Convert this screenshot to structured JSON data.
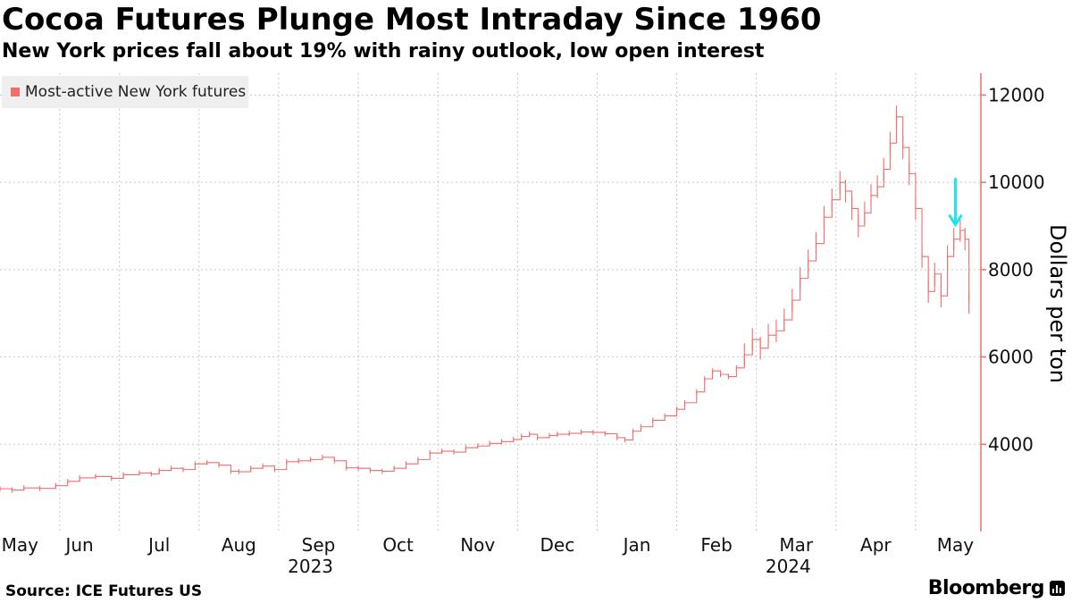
{
  "header": {
    "title": "Cocoa Futures Plunge Most Intraday Since 1960",
    "subtitle": "New York prices fall about 19% with rainy outlook, low open interest"
  },
  "footer": {
    "source": "Source: ICE Futures US",
    "brand": "Bloomberg"
  },
  "colors": {
    "series": "#f26d6d",
    "axis": "#f26d6d",
    "arrow": "#1ee4f0",
    "grid": "#c8c8c8"
  },
  "chart_data": {
    "type": "line",
    "title": "Cocoa Futures Plunge Most Intraday Since 1960",
    "subtitle": "New York prices fall about 19% with rainy outlook, low open interest",
    "ylabel": "Dollars per ton",
    "ylim": [
      2000,
      12500
    ],
    "yticks": [
      4000,
      6000,
      8000,
      10000,
      12000
    ],
    "ytick_labels": [
      "4000",
      "6000",
      "8000",
      "10000",
      "12000"
    ],
    "x_range": [
      0,
      12.32
    ],
    "month_ticks": [
      {
        "label": "May",
        "x": 0.25
      },
      {
        "label": "Jun",
        "x": 1
      },
      {
        "label": "Jul",
        "x": 2
      },
      {
        "label": "Aug",
        "x": 3
      },
      {
        "label": "Sep",
        "x": 4
      },
      {
        "label": "Oct",
        "x": 5
      },
      {
        "label": "Nov",
        "x": 6
      },
      {
        "label": "Dec",
        "x": 7
      },
      {
        "label": "Jan",
        "x": 8
      },
      {
        "label": "Feb",
        "x": 9
      },
      {
        "label": "Mar",
        "x": 10
      },
      {
        "label": "Apr",
        "x": 11
      },
      {
        "label": "May",
        "x": 12
      }
    ],
    "year_labels": [
      {
        "label": "2023",
        "x": 3.9
      },
      {
        "label": "2024",
        "x": 9.9
      }
    ],
    "legend": [
      "Most-active New York futures"
    ],
    "annotation": {
      "type": "down-arrow",
      "x": 12.0,
      "y_from": 10100,
      "y_to": 9050
    },
    "series": [
      {
        "name": "Most-active New York futures",
        "points": [
          [
            0.0,
            2980
          ],
          [
            0.15,
            2950
          ],
          [
            0.3,
            3000
          ],
          [
            0.5,
            2990
          ],
          [
            0.7,
            3050
          ],
          [
            0.85,
            3150
          ],
          [
            1.0,
            3230
          ],
          [
            1.2,
            3260
          ],
          [
            1.4,
            3220
          ],
          [
            1.55,
            3300
          ],
          [
            1.75,
            3340
          ],
          [
            1.9,
            3320
          ],
          [
            2.0,
            3400
          ],
          [
            2.15,
            3450
          ],
          [
            2.3,
            3420
          ],
          [
            2.45,
            3550
          ],
          [
            2.6,
            3580
          ],
          [
            2.75,
            3520
          ],
          [
            2.9,
            3380
          ],
          [
            3.0,
            3370
          ],
          [
            3.15,
            3450
          ],
          [
            3.3,
            3500
          ],
          [
            3.45,
            3420
          ],
          [
            3.6,
            3600
          ],
          [
            3.75,
            3620
          ],
          [
            3.9,
            3650
          ],
          [
            4.05,
            3700
          ],
          [
            4.2,
            3620
          ],
          [
            4.35,
            3460
          ],
          [
            4.5,
            3450
          ],
          [
            4.65,
            3400
          ],
          [
            4.8,
            3380
          ],
          [
            4.95,
            3450
          ],
          [
            5.1,
            3550
          ],
          [
            5.25,
            3650
          ],
          [
            5.4,
            3800
          ],
          [
            5.55,
            3840
          ],
          [
            5.7,
            3820
          ],
          [
            5.85,
            3920
          ],
          [
            6.0,
            3960
          ],
          [
            6.15,
            4020
          ],
          [
            6.3,
            4060
          ],
          [
            6.45,
            4110
          ],
          [
            6.55,
            4180
          ],
          [
            6.65,
            4230
          ],
          [
            6.75,
            4150
          ],
          [
            6.9,
            4200
          ],
          [
            7.0,
            4230
          ],
          [
            7.15,
            4250
          ],
          [
            7.3,
            4280
          ],
          [
            7.45,
            4270
          ],
          [
            7.6,
            4240
          ],
          [
            7.75,
            4150
          ],
          [
            7.85,
            4100
          ],
          [
            7.95,
            4300
          ],
          [
            8.05,
            4400
          ],
          [
            8.2,
            4550
          ],
          [
            8.35,
            4650
          ],
          [
            8.5,
            4800
          ],
          [
            8.6,
            4950
          ],
          [
            8.75,
            5200
          ],
          [
            8.85,
            5500
          ],
          [
            8.95,
            5680
          ],
          [
            9.05,
            5600
          ],
          [
            9.15,
            5550
          ],
          [
            9.25,
            5750
          ],
          [
            9.35,
            6050
          ],
          [
            9.45,
            6400
          ],
          [
            9.55,
            6200
          ],
          [
            9.65,
            6500
          ],
          [
            9.75,
            6600
          ],
          [
            9.85,
            6850
          ],
          [
            9.95,
            7300
          ],
          [
            10.05,
            7800
          ],
          [
            10.15,
            8200
          ],
          [
            10.25,
            8600
          ],
          [
            10.35,
            9200
          ],
          [
            10.45,
            9600
          ],
          [
            10.55,
            10000
          ],
          [
            10.62,
            9800
          ],
          [
            10.7,
            9400
          ],
          [
            10.78,
            9000
          ],
          [
            10.86,
            9300
          ],
          [
            10.94,
            9700
          ],
          [
            11.02,
            9900
          ],
          [
            11.1,
            10300
          ],
          [
            11.18,
            10900
          ],
          [
            11.26,
            11500
          ],
          [
            11.34,
            10800
          ],
          [
            11.42,
            10200
          ],
          [
            11.5,
            9400
          ],
          [
            11.58,
            8300
          ],
          [
            11.66,
            7500
          ],
          [
            11.74,
            7900
          ],
          [
            11.82,
            7400
          ],
          [
            11.9,
            8300
          ],
          [
            11.98,
            8700
          ],
          [
            12.06,
            8900
          ],
          [
            12.12,
            8700
          ],
          [
            12.17,
            7250
          ]
        ]
      }
    ]
  }
}
